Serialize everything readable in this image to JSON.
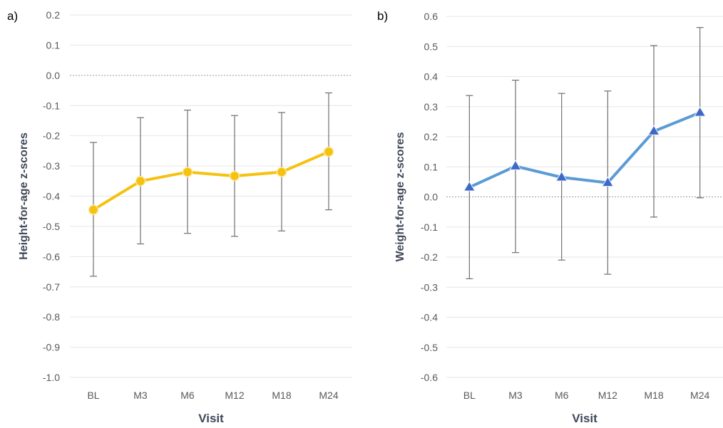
{
  "chart_data": [
    {
      "type": "line",
      "panel_label": "a)",
      "categories": [
        "BL",
        "M3",
        "M6",
        "M12",
        "M18",
        "M24"
      ],
      "series": [
        {
          "values": [
            -0.445,
            -0.35,
            -0.32,
            -0.333,
            -0.32,
            -0.253
          ],
          "error_low": [
            -0.665,
            -0.558,
            -0.523,
            -0.533,
            -0.515,
            -0.445
          ],
          "error_high": [
            -0.222,
            -0.14,
            -0.115,
            -0.133,
            -0.123,
            -0.058
          ],
          "color": "#f5c211",
          "marker": "circle"
        }
      ],
      "xlabel": "Visit",
      "ylabel": "Height-for-age z-scores",
      "ylim": [
        -1.0,
        0.2
      ],
      "yticks": [
        "0.2",
        "0.1",
        "0.0",
        "-0.1",
        "-0.2",
        "-0.3",
        "-0.4",
        "-0.5",
        "-0.6",
        "-0.7",
        "-0.8",
        "-0.9",
        "-1.0"
      ],
      "grid": true
    },
    {
      "type": "line",
      "panel_label": "b)",
      "categories": [
        "BL",
        "M3",
        "M6",
        "M12",
        "M18",
        "M24"
      ],
      "series": [
        {
          "values": [
            0.032,
            0.102,
            0.065,
            0.047,
            0.218,
            0.28
          ],
          "error_low": [
            -0.272,
            -0.185,
            -0.21,
            -0.257,
            -0.067,
            -0.003
          ],
          "error_high": [
            0.337,
            0.388,
            0.344,
            0.352,
            0.503,
            0.563
          ],
          "color": "#5b9bd5",
          "marker_color": "#3d68c6",
          "marker": "triangle"
        }
      ],
      "xlabel": "Visit",
      "ylabel": "Weight-for-age z-scores",
      "ylim": [
        -0.6,
        0.6
      ],
      "yticks": [
        "0.6",
        "0.5",
        "0.4",
        "0.3",
        "0.2",
        "0.1",
        "0.0",
        "-0.1",
        "-0.2",
        "-0.3",
        "-0.4",
        "-0.5",
        "-0.6"
      ],
      "grid": true
    }
  ]
}
